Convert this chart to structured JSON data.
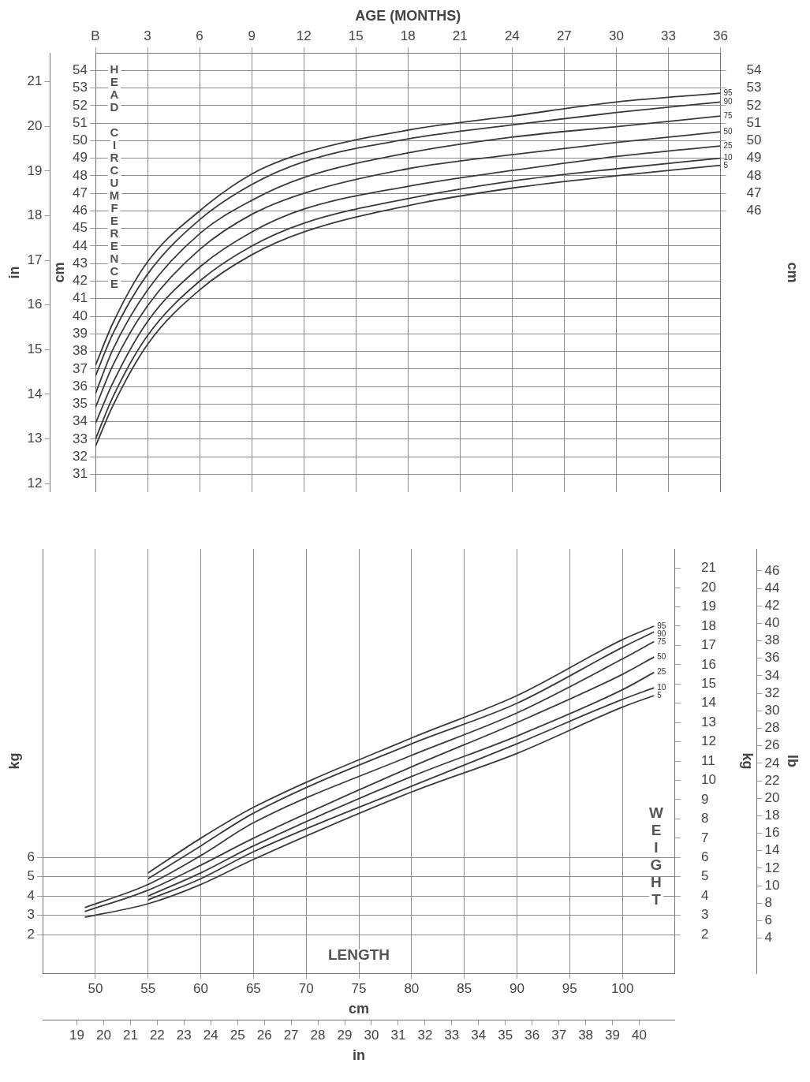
{
  "chart_data": [
    {
      "type": "line",
      "xlabel": "AGE (MONTHS)",
      "ylabel": "cm",
      "y2label": "cm",
      "y3label": "in",
      "annotations": [
        "HEAD CIRCUMFERENCE"
      ],
      "x": [
        0,
        1,
        3,
        6,
        9,
        12,
        18,
        24,
        30,
        36
      ],
      "xlim": [
        0,
        36
      ],
      "xticks": [
        {
          "value": 0,
          "label": "B"
        },
        3,
        6,
        9,
        12,
        15,
        18,
        21,
        24,
        27,
        30,
        33,
        36
      ],
      "ylim": [
        30,
        55
      ],
      "yticks": [
        31,
        32,
        33,
        34,
        35,
        36,
        37,
        38,
        39,
        40,
        41,
        42,
        43,
        44,
        45,
        46,
        47,
        48,
        49,
        50,
        51,
        52,
        53,
        54
      ],
      "y2lim": [
        30,
        55
      ],
      "y2ticks": [
        46,
        47,
        48,
        49,
        50,
        51,
        52,
        53,
        54
      ],
      "y3lim": [
        11.81,
        21.65
      ],
      "y3ticks": [
        12,
        13,
        14,
        15,
        16,
        17,
        18,
        19,
        20,
        21
      ],
      "grid": true,
      "marker": "none",
      "line_style": "solid",
      "series": [
        {
          "name": "95",
          "color": "#3a3a3a",
          "values": [
            37.2,
            39.6,
            43.1,
            46.0,
            48.1,
            49.3,
            50.6,
            51.4,
            52.2,
            52.7
          ]
        },
        {
          "name": "90",
          "color": "#3a3a3a",
          "values": [
            36.6,
            39.0,
            42.4,
            45.5,
            47.5,
            48.8,
            50.1,
            50.9,
            51.6,
            52.2
          ]
        },
        {
          "name": "75",
          "color": "#3a3a3a",
          "values": [
            35.6,
            38.1,
            41.5,
            44.7,
            46.6,
            47.9,
            49.3,
            50.2,
            50.8,
            51.4
          ]
        },
        {
          "name": "50",
          "color": "#3a3a3a",
          "values": [
            34.8,
            37.2,
            40.6,
            43.8,
            45.8,
            47.0,
            48.4,
            49.2,
            49.9,
            50.5
          ]
        },
        {
          "name": "25",
          "color": "#3a3a3a",
          "values": [
            33.9,
            36.2,
            39.7,
            42.8,
            44.8,
            46.1,
            47.4,
            48.3,
            49.1,
            49.7
          ]
        },
        {
          "name": "10",
          "color": "#3a3a3a",
          "values": [
            33.0,
            35.4,
            38.9,
            42.0,
            44.0,
            45.3,
            46.7,
            47.7,
            48.4,
            49.0
          ]
        },
        {
          "name": "5",
          "color": "#3a3a3a",
          "values": [
            32.6,
            34.9,
            38.4,
            41.5,
            43.5,
            44.8,
            46.3,
            47.3,
            48.0,
            48.6
          ]
        }
      ]
    },
    {
      "type": "line",
      "xlabel": "cm",
      "x2label": "in",
      "ylabel": "kg",
      "y2label": "kg",
      "y3label": "lb",
      "annotations": [
        "LENGTH",
        "WEIGHT"
      ],
      "xlim": [
        45,
        105
      ],
      "xticks": [
        50,
        55,
        60,
        65,
        70,
        75,
        80,
        85,
        90,
        95,
        100
      ],
      "x2lim": [
        17.72,
        41.34
      ],
      "x2ticks": [
        19,
        20,
        21,
        22,
        23,
        24,
        25,
        26,
        27,
        28,
        29,
        30,
        31,
        32,
        33,
        34,
        35,
        36,
        37,
        38,
        39,
        40
      ],
      "ylim": [
        0,
        22
      ],
      "yticks": [
        2,
        3,
        4,
        5,
        6
      ],
      "y2lim": [
        0,
        22
      ],
      "y2ticks": [
        2,
        3,
        4,
        5,
        6,
        7,
        8,
        9,
        10,
        11,
        12,
        13,
        14,
        15,
        16,
        17,
        18,
        19,
        20,
        21
      ],
      "y3lim": [
        0,
        48.5
      ],
      "y3ticks": [
        4,
        6,
        8,
        10,
        12,
        14,
        16,
        18,
        20,
        22,
        24,
        26,
        28,
        30,
        32,
        34,
        36,
        38,
        40,
        42,
        44,
        46
      ],
      "grid": true,
      "marker": "none",
      "line_style": "solid",
      "series": [
        {
          "name": "95",
          "color": "#3a3a3a",
          "x": [
            55,
            60,
            65,
            80,
            90,
            100,
            103
          ],
          "values": [
            5.2,
            7.0,
            8.6,
            12.2,
            14.4,
            17.3,
            18.0
          ]
        },
        {
          "name": "90",
          "color": "#3a3a3a",
          "x": [
            55,
            60,
            65,
            80,
            90,
            100,
            103
          ],
          "values": [
            4.9,
            6.6,
            8.3,
            11.9,
            14.0,
            16.9,
            17.7
          ]
        },
        {
          "name": "75",
          "color": "#3a3a3a",
          "x": [
            49,
            55,
            60,
            65,
            80,
            90,
            100,
            103
          ],
          "values": [
            3.4,
            4.6,
            6.1,
            7.8,
            11.3,
            13.5,
            16.3,
            17.2
          ]
        },
        {
          "name": "50",
          "color": "#3a3a3a",
          "x": [
            49,
            55,
            60,
            65,
            80,
            90,
            100,
            103
          ],
          "values": [
            3.2,
            4.3,
            5.6,
            7.0,
            10.7,
            13.0,
            15.5,
            16.4
          ]
        },
        {
          "name": "25",
          "color": "#3a3a3a",
          "x": [
            55,
            60,
            65,
            80,
            90,
            100,
            103
          ],
          "values": [
            4.0,
            5.2,
            6.6,
            10.2,
            12.3,
            14.7,
            15.6
          ]
        },
        {
          "name": "10",
          "color": "#3a3a3a",
          "x": [
            55,
            60,
            65,
            80,
            90,
            100,
            103
          ],
          "values": [
            3.8,
            4.9,
            6.3,
            9.7,
            11.9,
            14.2,
            14.8
          ]
        },
        {
          "name": "5",
          "color": "#3a3a3a",
          "x": [
            49,
            55,
            60,
            65,
            80,
            90,
            100,
            103
          ],
          "values": [
            2.9,
            3.6,
            4.6,
            5.9,
            9.4,
            11.4,
            13.8,
            14.4
          ]
        }
      ]
    }
  ]
}
